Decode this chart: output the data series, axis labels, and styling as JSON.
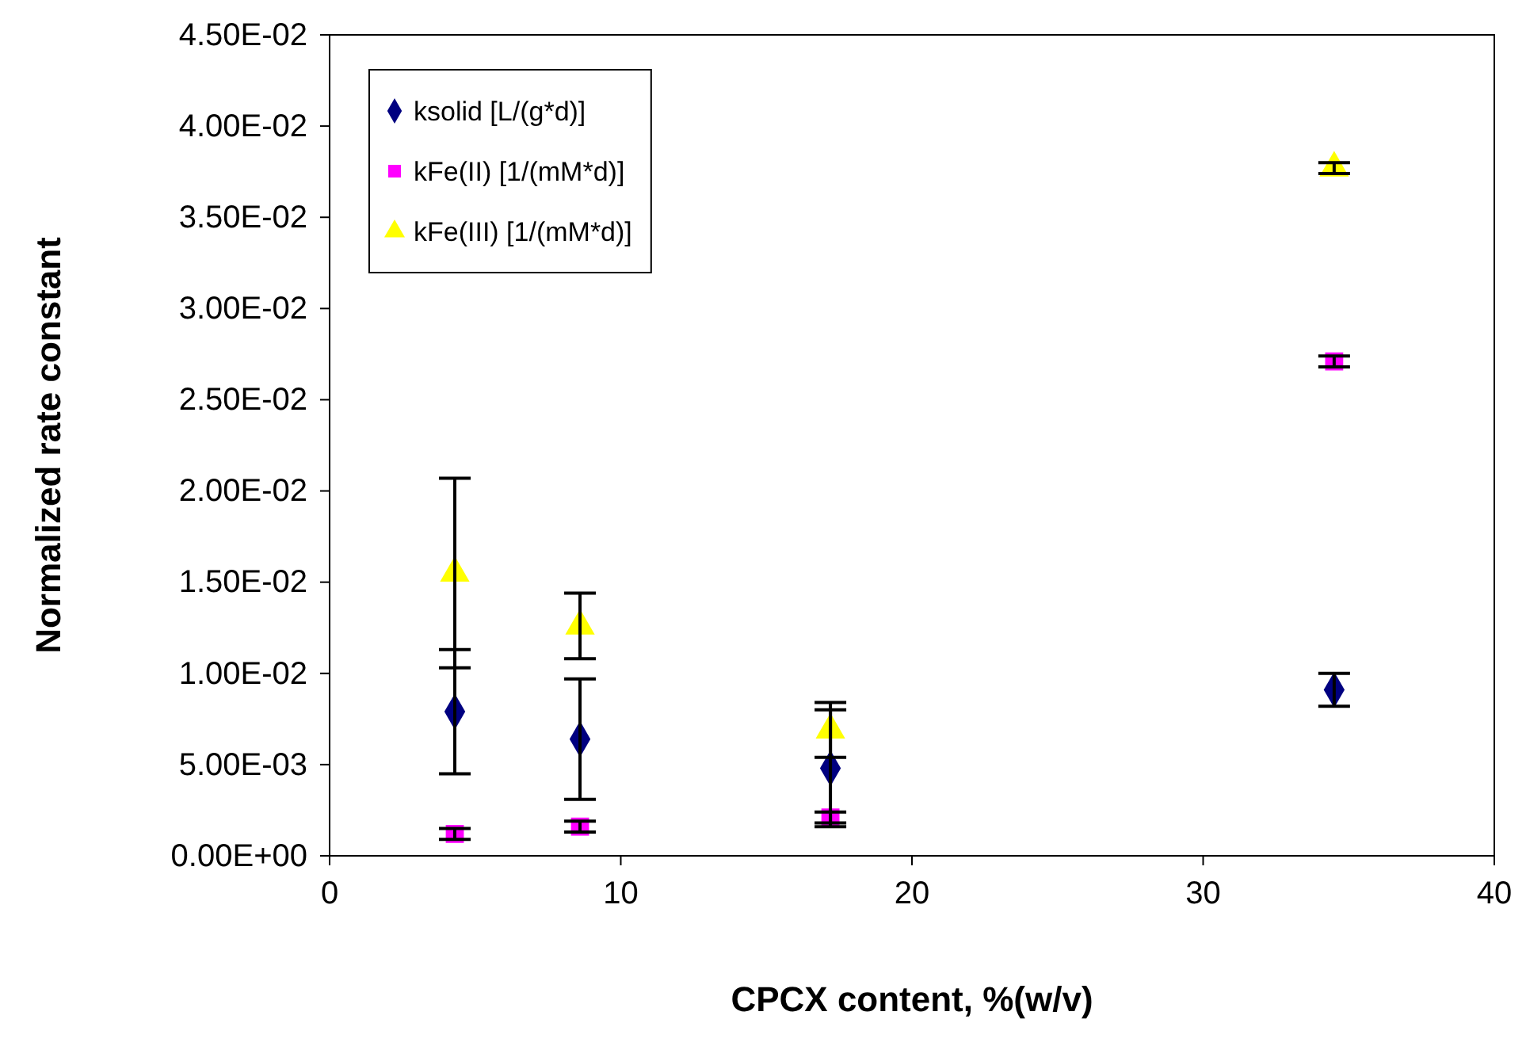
{
  "chart_data": {
    "type": "scatter",
    "xlabel": "CPCX content, %(w/v)",
    "ylabel": "Normalized rate constant",
    "x": [
      4.3,
      8.6,
      17.2,
      34.5
    ],
    "xlim": [
      0,
      40
    ],
    "xticks": [
      0,
      10,
      20,
      30,
      40
    ],
    "ylim": [
      0,
      0.045
    ],
    "yticks": [
      {
        "value": 0,
        "label": "0.00E+00"
      },
      {
        "value": 0.005,
        "label": "5.00E-03"
      },
      {
        "value": 0.01,
        "label": "1.00E-02"
      },
      {
        "value": 0.015,
        "label": "1.50E-02"
      },
      {
        "value": 0.02,
        "label": "2.00E-02"
      },
      {
        "value": 0.025,
        "label": "2.50E-02"
      },
      {
        "value": 0.03,
        "label": "3.00E-02"
      },
      {
        "value": 0.035,
        "label": "3.50E-02"
      },
      {
        "value": 0.04,
        "label": "4.00E-02"
      },
      {
        "value": 0.045,
        "label": "4.50E-02"
      }
    ],
    "grid": false,
    "legend": "top left",
    "series": [
      {
        "name": "ksolid [L/(g*d)]",
        "color": "#000080",
        "marker": "diamond",
        "values": [
          0.0079,
          0.0064,
          0.0048,
          0.0091
        ],
        "errors": [
          0.0034,
          0.0033,
          0.0032,
          0.0009
        ]
      },
      {
        "name": "kFe(II) [1/(mM*d)]",
        "color": "#ff00ff",
        "marker": "square",
        "values": [
          0.0012,
          0.0016,
          0.0021,
          0.0271
        ],
        "errors": [
          0.0003,
          0.0003,
          0.0003,
          0.0003
        ]
      },
      {
        "name": "kFe(III) [1/(mM*d)]",
        "color": "#ffff00",
        "marker": "triangle",
        "values": [
          0.0155,
          0.0126,
          0.0069,
          0.0377
        ],
        "errors": [
          0.0052,
          0.0018,
          0.0015,
          0.0003
        ]
      }
    ]
  }
}
